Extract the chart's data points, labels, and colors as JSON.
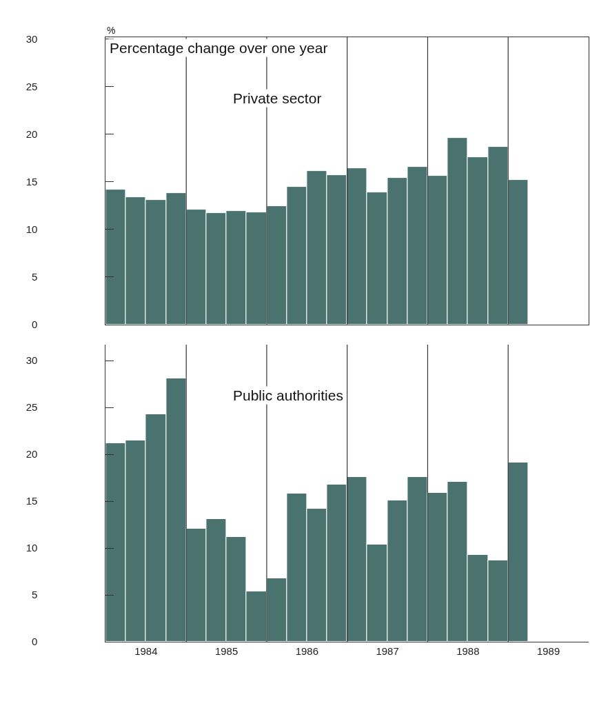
{
  "chart_data": [
    {
      "type": "bar",
      "title": "Private sector",
      "ylabel": "%",
      "annotations": [
        "Percentage change over one year"
      ],
      "x": [
        1984.125,
        1984.375,
        1984.625,
        1984.875,
        1985.125,
        1985.375,
        1985.625,
        1985.875,
        1986.125,
        1986.375,
        1986.625,
        1986.875,
        1987.125,
        1987.375,
        1987.625,
        1987.875,
        1988.125,
        1988.375,
        1988.625,
        1988.875,
        1989.125
      ],
      "values": [
        14.2,
        13.4,
        13.1,
        13.8,
        12.1,
        11.7,
        11.9,
        11.8,
        12.4,
        14.5,
        16.1,
        15.7,
        16.4,
        13.9,
        15.4,
        16.6,
        15.6,
        19.6,
        17.6,
        18.7,
        15.2
      ],
      "color": "#4a7370",
      "xlim": [
        1984,
        1990
      ],
      "ylim": [
        0,
        30.2
      ],
      "yticks": [
        0,
        5,
        10,
        15,
        20,
        25,
        30
      ],
      "tick_labels": "y",
      "ref_lines": [
        {
          "axis": "x",
          "value": 1985
        },
        {
          "axis": "x",
          "value": 1986
        },
        {
          "axis": "x",
          "value": 1987
        },
        {
          "axis": "x",
          "value": 1988
        },
        {
          "axis": "x",
          "value": 1989
        }
      ]
    },
    {
      "type": "bar",
      "title": "Public authorities",
      "x": [
        1984.125,
        1984.375,
        1984.625,
        1984.875,
        1985.125,
        1985.375,
        1985.625,
        1985.875,
        1986.125,
        1986.375,
        1986.625,
        1986.875,
        1987.125,
        1987.375,
        1987.625,
        1987.875,
        1988.125,
        1988.375,
        1988.625,
        1988.875,
        1989.125
      ],
      "values": [
        21.2,
        21.5,
        24.3,
        28.1,
        12.1,
        13.1,
        11.2,
        5.4,
        6.8,
        15.8,
        14.2,
        16.8,
        17.6,
        10.4,
        15.1,
        17.6,
        15.9,
        17.1,
        9.3,
        8.7,
        19.1
      ],
      "color": "#4a7370",
      "xlim": [
        1984,
        1990
      ],
      "ylim": [
        0,
        31.7
      ],
      "yticks": [
        0,
        5,
        10,
        15,
        20,
        25,
        30
      ],
      "xticks": [
        {
          "value": 1984.5,
          "label": "1984"
        },
        {
          "value": 1985.5,
          "label": "1985"
        },
        {
          "value": 1986.5,
          "label": "1986"
        },
        {
          "value": 1987.5,
          "label": "1987"
        },
        {
          "value": 1988.5,
          "label": "1988"
        },
        {
          "value": 1989.5,
          "label": "1989"
        }
      ],
      "ref_lines": [
        {
          "axis": "x",
          "value": 1985
        },
        {
          "axis": "x",
          "value": 1986
        },
        {
          "axis": "x",
          "value": 1987
        },
        {
          "axis": "x",
          "value": 1988
        },
        {
          "axis": "x",
          "value": 1989
        }
      ]
    }
  ]
}
